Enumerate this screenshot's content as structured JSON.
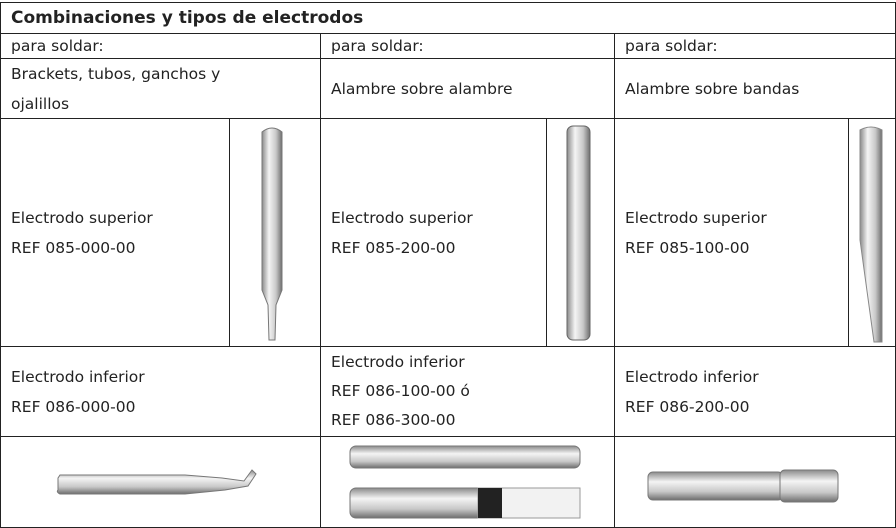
{
  "header": {
    "title": "Combinaciones y tipos de electrodos"
  },
  "columns": [
    {
      "heading": "para soldar:",
      "application": [
        "Brackets, tubos, ganchos y",
        "ojalillos"
      ],
      "upper": {
        "label": "Electrodo superior",
        "ref": "REF 085-000-00"
      },
      "lower": {
        "label": "Electrodo inferior",
        "refs": [
          "REF 086-000-00"
        ]
      }
    },
    {
      "heading": "para soldar:",
      "application": [
        "Alambre sobre alambre"
      ],
      "upper": {
        "label": "Electrodo superior",
        "ref": "REF 085-200-00"
      },
      "lower": {
        "label": "Electrodo inferior",
        "refs": [
          "REF 086-100-00 ó",
          "REF 086-300-00"
        ]
      }
    },
    {
      "heading": "para soldar:",
      "application": [
        "Alambre sobre bandas"
      ],
      "upper": {
        "label": "Electrodo superior",
        "ref": "REF 085-100-00"
      },
      "lower": {
        "label": "Electrodo inferior",
        "refs": [
          "REF 086-200-00"
        ]
      }
    }
  ]
}
